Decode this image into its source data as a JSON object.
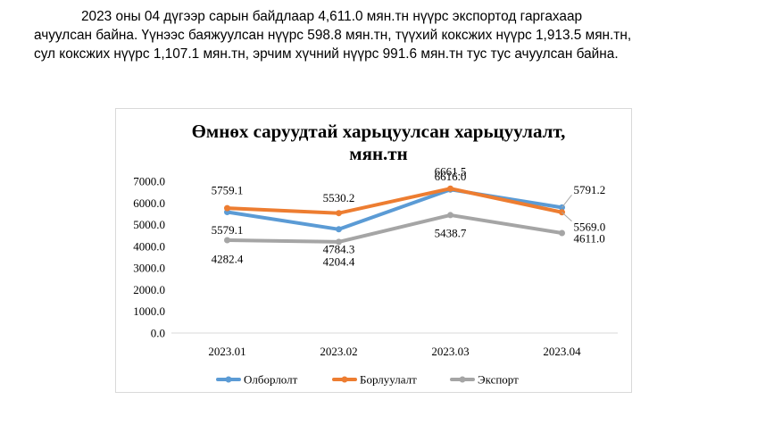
{
  "paragraph": {
    "line1": "2023  оны 04 дүгээр сарын байдлаар 4,611.0 мян.тн нүүрс экспортод гаргахаар",
    "line2": "ачуулсан байна. Үүнээс баяжуулсан нүүрс 598.8 мян.тн, түүхий коксжих нүүрс 1,913.5 мян.тн,",
    "line3": "сул коксжих нүүрс 1,107.1 мян.тн, эрчим хүчний нүүрс 991.6 мян.тн тус тус ачуулсан байна."
  },
  "chart_data": {
    "type": "line",
    "title": "Өмнөх саруудтай харьцуулсан харьцуулалт, мян.тн",
    "title_lines": [
      "Өмнөх саруудтай харьцуулсан харьцуулалт,",
      "мян.тн"
    ],
    "categories": [
      "2023.01",
      "2023.02",
      "2023.03",
      "2023.04"
    ],
    "ylim": [
      0,
      7000
    ],
    "y_ticks": [
      "0.0",
      "1000.0",
      "2000.0",
      "3000.0",
      "4000.0",
      "5000.0",
      "6000.0",
      "7000.0"
    ],
    "grid": false,
    "legend_position": "bottom",
    "series": [
      {
        "name": "Олборлолт",
        "color": "#5b9bd5",
        "values": [
          5579.1,
          4784.3,
          6616.0,
          5791.2
        ],
        "labels": [
          "5579.1",
          "4784.3",
          "6616.0",
          "5791.2"
        ]
      },
      {
        "name": "Борлуулалт",
        "color": "#ed7d31",
        "values": [
          5759.1,
          5530.2,
          6661.5,
          5569.0
        ],
        "labels": [
          "5759.1",
          "5530.2",
          "6661.5",
          "5569.0"
        ]
      },
      {
        "name": "Экспорт",
        "color": "#a5a5a5",
        "values": [
          4282.4,
          4204.4,
          5438.7,
          4611.0
        ],
        "labels": [
          "4282.4",
          "4204.4",
          "5438.7",
          "4611.0"
        ]
      }
    ]
  }
}
